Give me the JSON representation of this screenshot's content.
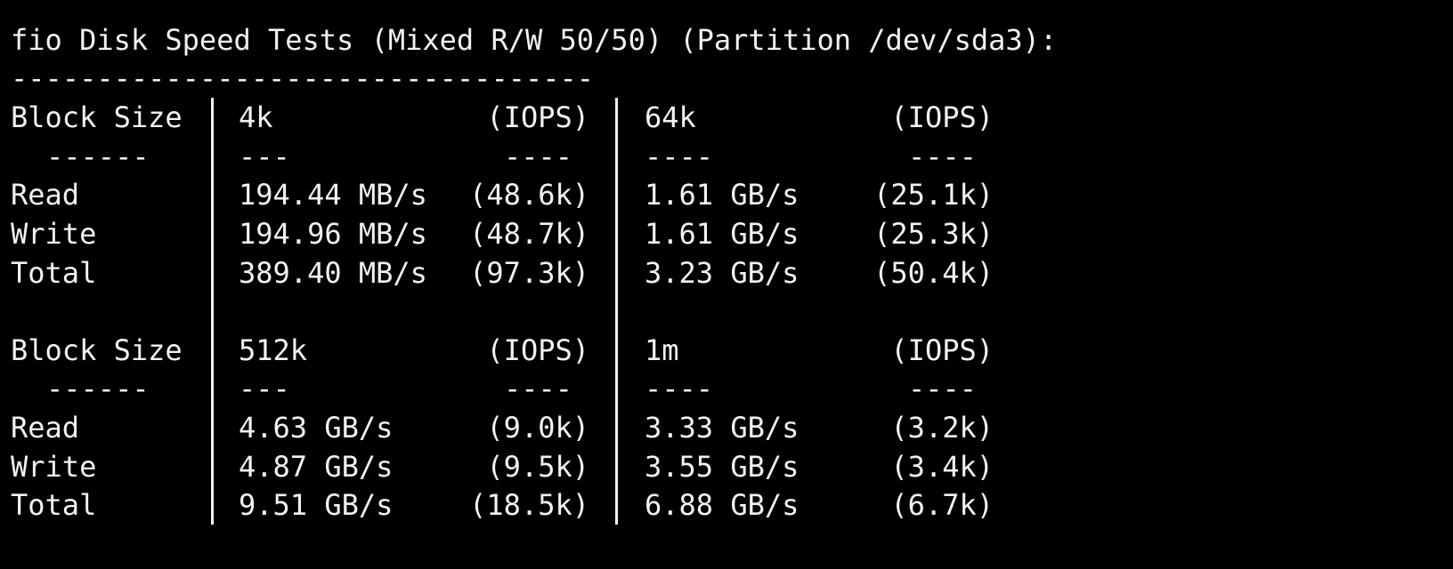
{
  "title": "fio Disk Speed Tests (Mixed R/W 50/50) (Partition /dev/sda3):",
  "rule": "----------------------------------",
  "blocks": [
    {
      "header": [
        "Block Size",
        "4k",
        "(IOPS)",
        "64k",
        "(IOPS)"
      ],
      "dashes": [
        "------",
        "---",
        "----",
        "----",
        "----"
      ],
      "rows": [
        [
          "Read",
          "194.44 MB/s",
          "(48.6k)",
          "1.61 GB/s",
          "(25.1k)"
        ],
        [
          "Write",
          "194.96 MB/s",
          "(48.7k)",
          "1.61 GB/s",
          "(25.3k)"
        ],
        [
          "Total",
          "389.40 MB/s",
          "(97.3k)",
          "3.23 GB/s",
          "(50.4k)"
        ]
      ]
    },
    {
      "header": [
        "Block Size",
        "512k",
        "(IOPS)",
        "1m",
        "(IOPS)"
      ],
      "dashes": [
        "------",
        "---",
        "----",
        "----",
        "----"
      ],
      "rows": [
        [
          "Read",
          "4.63 GB/s",
          "(9.0k)",
          "3.33 GB/s",
          "(3.2k)"
        ],
        [
          "Write",
          "4.87 GB/s",
          "(9.5k)",
          "3.55 GB/s",
          "(3.4k)"
        ],
        [
          "Total",
          "9.51 GB/s",
          "(18.5k)",
          "6.88 GB/s",
          "(6.7k)"
        ]
      ]
    }
  ]
}
